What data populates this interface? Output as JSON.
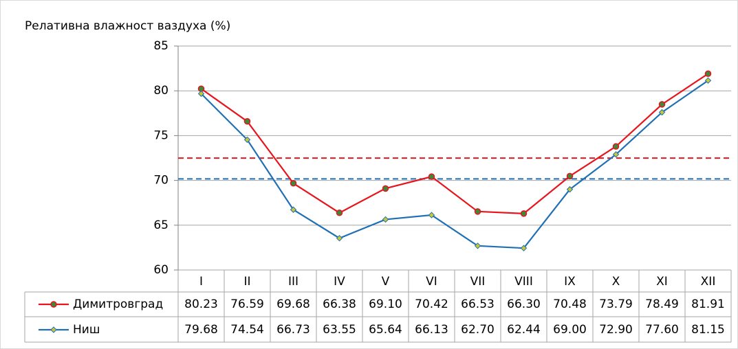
{
  "chart_data": {
    "type": "line",
    "title": "Релативна влажност ваздуха (%)",
    "categories": [
      "I",
      "II",
      "III",
      "IV",
      "V",
      "VI",
      "VII",
      "VIII",
      "IX",
      "X",
      "XI",
      "XII"
    ],
    "series": [
      {
        "name": "Димитровград",
        "color": "#e8141b",
        "marker_color": "#3a8a3a",
        "marker": "circle",
        "values": [
          80.23,
          76.59,
          69.68,
          66.38,
          69.1,
          70.42,
          66.53,
          66.3,
          70.48,
          73.79,
          78.49,
          81.91
        ],
        "value_labels": [
          "80.23",
          "76.59",
          "69.68",
          "66.38",
          "69.10",
          "70.42",
          "66.53",
          "66.30",
          "70.48",
          "73.79",
          "78.49",
          "81.91"
        ]
      },
      {
        "name": "Ниш",
        "color": "#1f6fb4",
        "marker_color": "#c8c832",
        "marker": "diamond",
        "values": [
          79.68,
          74.54,
          66.73,
          63.55,
          65.64,
          66.13,
          62.7,
          62.44,
          69.0,
          72.9,
          77.6,
          81.15
        ],
        "value_labels": [
          "79.68",
          "74.54",
          "66.73",
          "63.55",
          "65.64",
          "66.13",
          "62.70",
          "62.44",
          "69.00",
          "72.90",
          "77.60",
          "81.15"
        ]
      }
    ],
    "mean_lines": [
      {
        "color": "#e8141b",
        "value": 72.49
      },
      {
        "color": "#1f6fb4",
        "value": 70.17
      }
    ],
    "ylim": [
      60,
      85
    ],
    "yticks": [
      60,
      65,
      70,
      75,
      80,
      85
    ],
    "grid": true
  }
}
